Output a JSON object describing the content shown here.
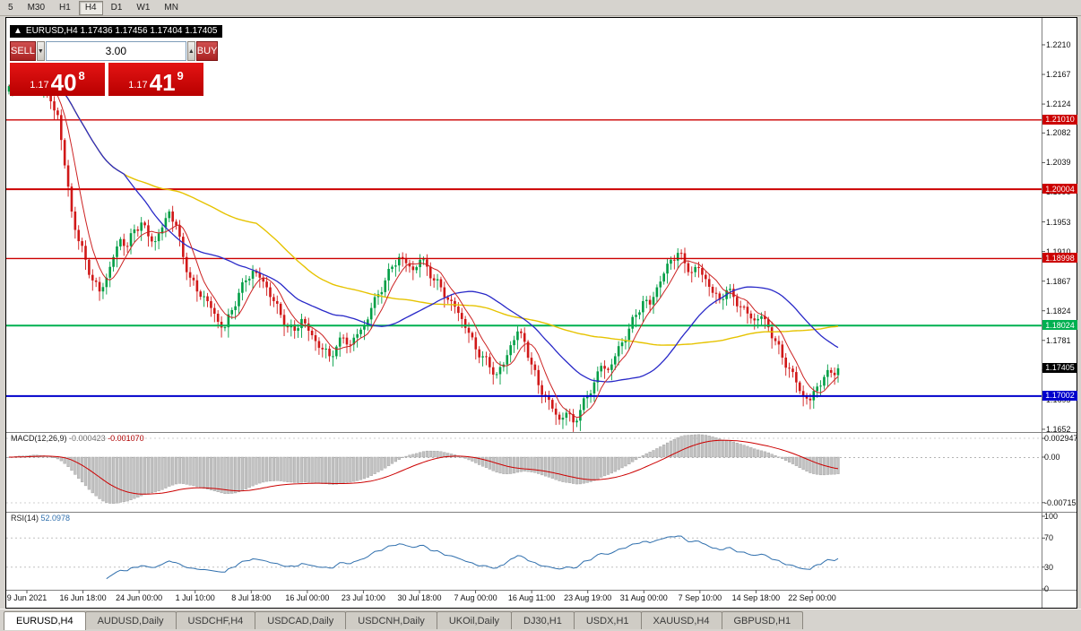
{
  "toolbar": {
    "periods": [
      "5",
      "M30",
      "H1",
      "H4",
      "D1",
      "W1",
      "MN"
    ],
    "active_period": "H4"
  },
  "chart_header": {
    "trend_icon": "▲",
    "text": "EURUSD,H4 1.17436 1.17456 1.17404 1.17405"
  },
  "trade_panel": {
    "sell_label": "SELL",
    "buy_label": "BUY",
    "lot_value": "3.00",
    "step_down_icon": "▼",
    "step_up_icon": "▲",
    "sell_price_prefix": "1.17",
    "sell_price_big": "40",
    "sell_price_sup": "8",
    "buy_price_prefix": "1.17",
    "buy_price_big": "41",
    "buy_price_sup": "9"
  },
  "price_axis_ticks": [
    1.221,
    1.2167,
    1.2124,
    1.2082,
    1.2039,
    1.1996,
    1.1953,
    1.191,
    1.1867,
    1.1824,
    1.1781,
    1.1738,
    1.1695,
    1.1652
  ],
  "levels": [
    {
      "price": 1.2101,
      "label": "1.21010",
      "color": "#cc0000",
      "width": 1.4
    },
    {
      "price": 1.20004,
      "label": "1.20004",
      "color": "#cc0000",
      "width": 2
    },
    {
      "price": 1.18998,
      "label": "1.18998",
      "color": "#cc0000",
      "width": 1.4
    },
    {
      "price": 1.18024,
      "label": "1.18024",
      "color": "#00b050",
      "width": 2
    },
    {
      "price": 1.17002,
      "label": "1.17002",
      "color": "#0000cc",
      "width": 2
    }
  ],
  "current_price": {
    "value": 1.17405,
    "label": "1.17405",
    "bg": "#000000"
  },
  "macd_panel": {
    "name": "MACD(12,26,9)",
    "value1": "-0.000423",
    "value2": "-0.001070",
    "axis": [
      {
        "label": "0.002947",
        "value": 0.002947
      },
      {
        "label": "0.00",
        "value": 0
      },
      {
        "label": "-0.00715",
        "value": -0.00715
      }
    ]
  },
  "rsi_panel": {
    "name": "RSI(14)",
    "value": "52.0978",
    "axis": [
      100,
      70,
      30,
      0
    ],
    "guide_levels": [
      70,
      30
    ]
  },
  "time_axis": [
    "9 Jun 2021",
    "16 Jun 18:00",
    "24 Jun 00:00",
    "1 Jul 10:00",
    "8 Jul 18:00",
    "16 Jul 00:00",
    "23 Jul 10:00",
    "30 Jul 18:00",
    "7 Aug 00:00",
    "16 Aug 11:00",
    "23 Aug 19:00",
    "31 Aug 00:00",
    "7 Sep 10:00",
    "14 Sep 18:00",
    "22 Sep 00:00"
  ],
  "tabs": {
    "active": "EURUSD,H4",
    "items": [
      "EURUSD,H4",
      "AUDUSD,Daily",
      "USDCHF,H4",
      "USDCAD,Daily",
      "USDCNH,Daily",
      "UKOil,Daily",
      "DJ30,H1",
      "USDX,H1",
      "XAUUSD,H4",
      "GBPUSD,H1"
    ]
  },
  "chart_data": {
    "type": "candlestick",
    "symbol": "EURUSD",
    "timeframe": "H4",
    "ylim": [
      1.1648,
      1.2249
    ],
    "closes": [
      1.215,
      1.2168,
      1.2158,
      1.2172,
      1.216,
      1.2148,
      1.2128,
      1.2108,
      1.2035,
      1.1968,
      1.1925,
      1.1898,
      1.1868,
      1.1852,
      1.1872,
      1.1902,
      1.1928,
      1.1918,
      1.1942,
      1.1952,
      1.1932,
      1.1925,
      1.1945,
      1.1968,
      1.1948,
      1.1902,
      1.1872,
      1.1852,
      1.1845,
      1.1828,
      1.1808,
      1.18,
      1.1825,
      1.185,
      1.1868,
      1.1882,
      1.1872,
      1.1858,
      1.1838,
      1.1818,
      1.18,
      1.1795,
      1.1812,
      1.1795,
      1.178,
      1.1768,
      1.1758,
      1.1772,
      1.1785,
      1.1775,
      1.179,
      1.1802,
      1.1828,
      1.1848,
      1.1868,
      1.1888,
      1.1902,
      1.1893,
      1.1883,
      1.1898,
      1.1888,
      1.1868,
      1.1858,
      1.184,
      1.183,
      1.1812,
      1.1792,
      1.1768,
      1.1758,
      1.1742,
      1.1732,
      1.1746,
      1.1774,
      1.1794,
      1.1779,
      1.1746,
      1.1716,
      1.17,
      1.1682,
      1.1666,
      1.1676,
      1.1662,
      1.168,
      1.17,
      1.172,
      1.1744,
      1.1738,
      1.1758,
      1.1778,
      1.1798,
      1.1818,
      1.1838,
      1.1833,
      1.1858,
      1.1878,
      1.1898,
      1.1908,
      1.1893,
      1.188,
      1.1886,
      1.187,
      1.185,
      1.184,
      1.1854,
      1.1844,
      1.183,
      1.182,
      1.181,
      1.1816,
      1.18,
      1.178,
      1.1756,
      1.174,
      1.172,
      1.17,
      1.1694,
      1.1714,
      1.1728,
      1.1734,
      1.17405
    ],
    "candle_up_color": "#009e45",
    "candle_down_color": "#d01818",
    "ma_colors": {
      "fast": "#cc2222",
      "mid": "#2929c8",
      "slow": "#e6c300"
    },
    "macd_colors": {
      "histogram": "#c2c2c2",
      "signal": "#cc0000"
    },
    "rsi_color": "#2f6fad"
  }
}
